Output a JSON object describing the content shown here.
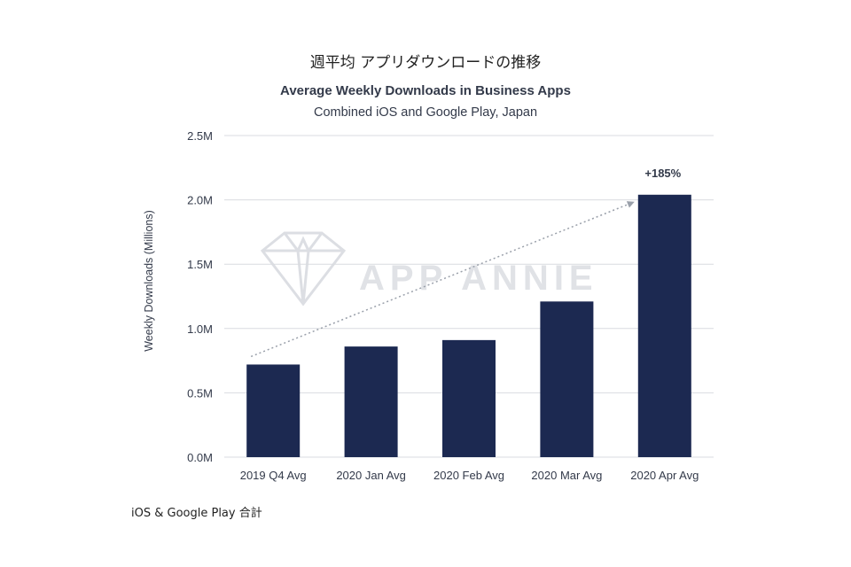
{
  "header": {
    "jp_title": "週平均 アプリダウンロードの推移"
  },
  "footer": {
    "note": "iOS & Google Play 合計"
  },
  "watermark": {
    "text": "APP ANNIE"
  },
  "colors": {
    "bar": "#1c2951",
    "grid": "#d9dbe0",
    "trend": "#9aa0aa",
    "axis_text": "#333a4a",
    "watermark": "#d9dbe0"
  },
  "chart_data": {
    "type": "bar",
    "title": "Average Weekly Downloads in Business Apps",
    "subtitle": "Combined iOS and Google Play, Japan",
    "xlabel": "",
    "ylabel": "Weekly Downloads (Millions)",
    "categories": [
      "2019 Q4 Avg",
      "2020 Jan Avg",
      "2020 Feb Avg",
      "2020 Mar Avg",
      "2020 Apr Avg"
    ],
    "values": [
      0.72,
      0.86,
      0.91,
      1.21,
      2.04
    ],
    "ylim": [
      0,
      2.5
    ],
    "yticks": [
      0,
      0.5,
      1.0,
      1.5,
      2.0,
      2.5
    ],
    "ytick_labels": [
      "0.0M",
      "0.5M",
      "1.0M",
      "1.5M",
      "2.0M",
      "2.5M"
    ],
    "grid": true,
    "annotation": {
      "text": "+185%",
      "category": "2020 Apr Avg",
      "style": "dotted trend arrow from first bar to last bar"
    }
  }
}
